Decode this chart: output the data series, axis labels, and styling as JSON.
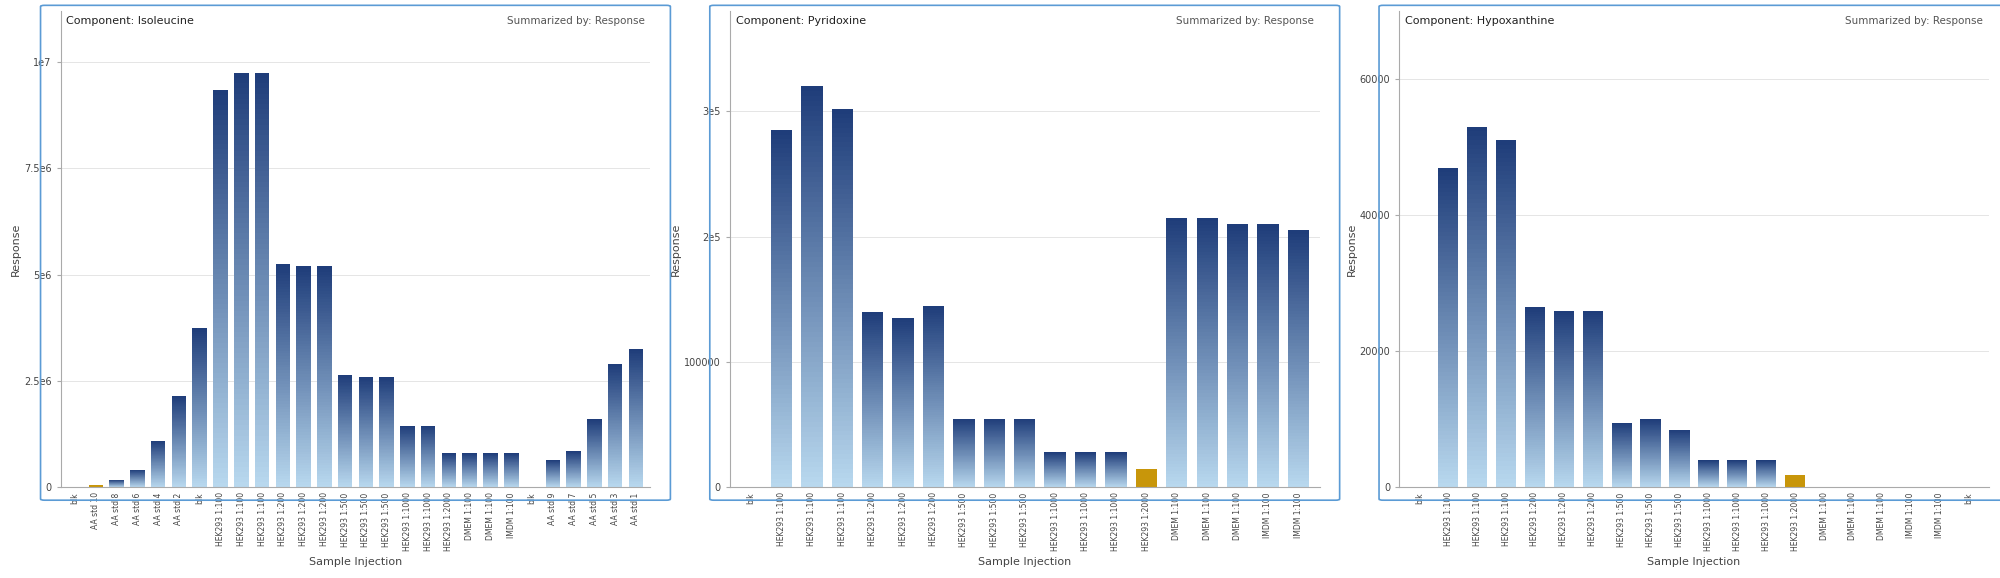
{
  "chart1": {
    "title": "Component: Isoleucine",
    "subtitle": "Summarized by: Response",
    "ylabel": "Response",
    "xlabel": "Sample Injection",
    "categories": [
      "blk",
      "AA std 10",
      "AA std 8",
      "AA std 6",
      "AA std 4",
      "AA std 2",
      "blk",
      "HEK293 1:100",
      "HEK293 1:100",
      "HEK293 1:100",
      "HEK293 1:200",
      "HEK293 1:200",
      "HEK293 1:200",
      "HEK293 1:500",
      "HEK293 1:500",
      "HEK293 1:500",
      "HEK293 1:1000",
      "HEK293 1:1000",
      "HEK293 1:2000",
      "DMEM 1:100",
      "DMEM 1:100",
      "IMDM 1:100",
      "blk",
      "AA std 9",
      "AA std 7",
      "AA std 5",
      "AA std 3",
      "AA std 1"
    ],
    "values": [
      0,
      50000,
      180000,
      420000,
      1100000,
      2150000,
      3750000,
      9350000,
      9750000,
      9750000,
      5250000,
      5200000,
      5200000,
      2650000,
      2600000,
      2600000,
      1450000,
      1450000,
      800000,
      800000,
      800000,
      800000,
      0,
      650000,
      850000,
      1600000,
      2900000,
      3250000
    ],
    "special_indices": [],
    "special_colors": [],
    "orange_indices": [
      1
    ],
    "ylim": [
      0,
      11200000
    ],
    "yticks": [
      0,
      2500000,
      5000000,
      7500000,
      10000000
    ],
    "ytick_labels": [
      "0",
      "2.5e6",
      "5e6",
      "7.5e6",
      "1e7"
    ]
  },
  "chart2": {
    "title": "Component: Pyridoxine",
    "subtitle": "Summarized by: Response",
    "ylabel": "Response",
    "xlabel": "Sample Injection",
    "categories": [
      "blk",
      "HEK293 1:100",
      "HEK293 1:100",
      "HEK293 1:100",
      "HEK293 1:200",
      "HEK293 1:200",
      "HEK293 1:200",
      "HEK293 1:500",
      "HEK293 1:500",
      "HEK293 1:500",
      "HEK293 1:1000",
      "HEK293 1:1000",
      "HEK293 1:1000",
      "HEK293 1:2000",
      "DMEM 1:100",
      "DMEM 1:100",
      "DMEM 1:100",
      "IMDM 1:100",
      "IMDM 1:100"
    ],
    "values": [
      0,
      285000,
      320000,
      302000,
      140000,
      135000,
      145000,
      55000,
      55000,
      55000,
      28000,
      28000,
      28000,
      15000,
      215000,
      215000,
      210000,
      210000,
      205000
    ],
    "orange_indices": [
      13
    ],
    "ylim": [
      0,
      380000
    ],
    "yticks": [
      0,
      100000,
      200000,
      300000
    ],
    "ytick_labels": [
      "0",
      "100000",
      "2e5",
      "3e5"
    ]
  },
  "chart3": {
    "title": "Component: Hypoxanthine",
    "subtitle": "Summarized by: Response",
    "ylabel": "Response",
    "xlabel": "Sample Injection",
    "categories": [
      "blk",
      "HEK293 1:100",
      "HEK293 1:100",
      "HEK293 1:100",
      "HEK293 1:200",
      "HEK293 1:200",
      "HEK293 1:200",
      "HEK293 1:500",
      "HEK293 1:500",
      "HEK293 1:500",
      "HEK293 1:1000",
      "HEK293 1:1000",
      "HEK293 1:1000",
      "HEK293 1:2000",
      "DMEM 1:100",
      "DMEM 1:100",
      "DMEM 1:100",
      "IMDM 1:100",
      "IMDM 1:100",
      "blk"
    ],
    "values": [
      0,
      47000,
      53000,
      51000,
      26500,
      26000,
      26000,
      9500,
      10000,
      8500,
      4000,
      4000,
      4000,
      1800,
      0,
      0,
      0,
      0,
      0,
      0
    ],
    "orange_indices": [
      13
    ],
    "ylim": [
      0,
      70000
    ],
    "yticks": [
      0,
      20000,
      40000,
      60000
    ],
    "ytick_labels": [
      "0",
      "20000",
      "40000",
      "60000"
    ]
  },
  "bg_color": "#ffffff",
  "border_color": "#5b9bd5",
  "bar_dark": "#1f3d7a",
  "bar_light": "#b8d8ee",
  "bar_orange": "#c8960a",
  "text_color": "#333333",
  "grid_color": "#e0e0e0",
  "spine_color": "#aaaaaa"
}
